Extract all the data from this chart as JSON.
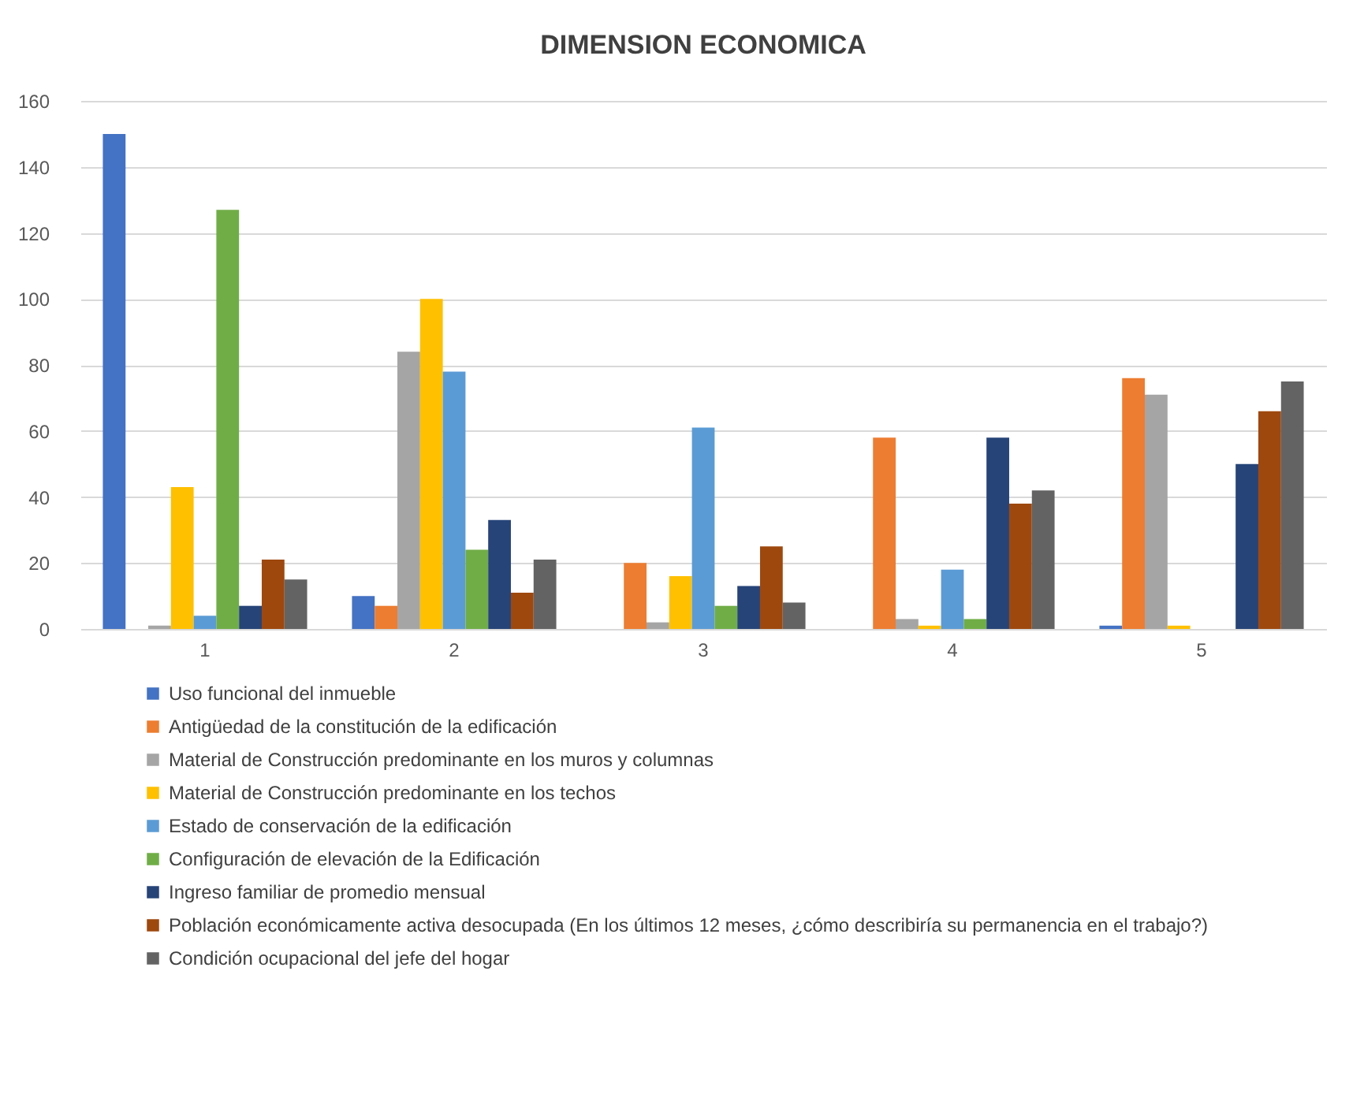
{
  "chart_data": {
    "type": "bar",
    "title": "DIMENSION ECONOMICA",
    "categories": [
      "1",
      "2",
      "3",
      "4",
      "5"
    ],
    "series": [
      {
        "name": "Uso funcional del inmueble",
        "color": "#4472c4",
        "values": [
          150,
          10,
          0,
          0,
          1
        ]
      },
      {
        "name": "Antigüedad de la constitución de la edificación",
        "color": "#ed7d31",
        "values": [
          0,
          7,
          20,
          58,
          76
        ]
      },
      {
        "name": "Material de Construcción predominante en los muros y columnas",
        "color": "#a5a5a5",
        "values": [
          1,
          84,
          2,
          3,
          71
        ]
      },
      {
        "name": "Material de Construcción predominante en los techos",
        "color": "#ffc000",
        "values": [
          43,
          100,
          16,
          1,
          1
        ]
      },
      {
        "name": "Estado de conservación de la edificación",
        "color": "#5b9bd5",
        "values": [
          4,
          78,
          61,
          18,
          0
        ]
      },
      {
        "name": "Configuración de elevación de la Edificación",
        "color": "#70ad47",
        "values": [
          127,
          24,
          7,
          3,
          0
        ]
      },
      {
        "name": "Ingreso familiar de promedio mensual",
        "color": "#264478",
        "values": [
          7,
          33,
          13,
          58,
          50
        ]
      },
      {
        "name": "Población económicamente activa desocupada (En los últimos 12 meses, ¿cómo describiría su permanencia en el trabajo?)",
        "color": "#9e480e",
        "values": [
          21,
          11,
          25,
          38,
          66
        ]
      },
      {
        "name": "Condición ocupacional del jefe del hogar",
        "color": "#636363",
        "values": [
          15,
          21,
          8,
          42,
          75
        ]
      }
    ],
    "ylim": [
      0,
      160
    ],
    "yticks": [
      0,
      20,
      40,
      60,
      80,
      100,
      120,
      140,
      160
    ],
    "grid": "y",
    "legend": "bottom"
  }
}
